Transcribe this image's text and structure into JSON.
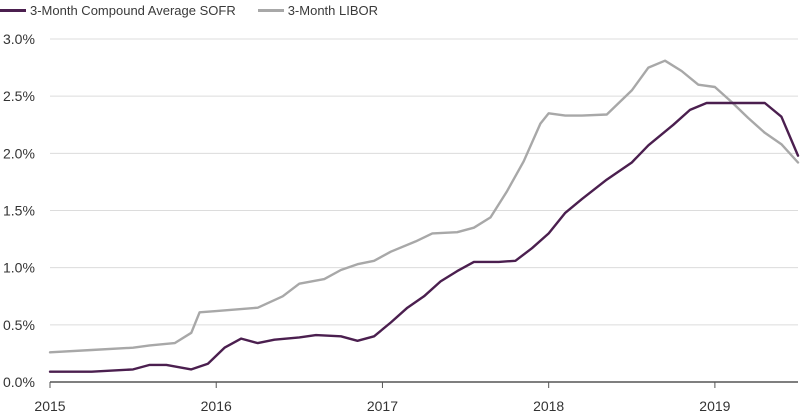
{
  "chart_data": {
    "type": "line",
    "title": "",
    "xlabel": "",
    "ylabel": "",
    "x_ticks": [
      "2015",
      "2016",
      "2017",
      "2018",
      "2019"
    ],
    "y_ticks": [
      "0.0%",
      "0.5%",
      "1.0%",
      "1.5%",
      "2.0%",
      "2.5%",
      "3.0%"
    ],
    "xlim": [
      2015.0,
      2019.5
    ],
    "ylim": [
      0,
      3.0
    ],
    "grid": "horizontal",
    "legend_position": "top-left",
    "series": [
      {
        "name": "3-Month Compound Average SOFR",
        "color": "#4b1f4f",
        "x": [
          2015.0,
          2015.25,
          2015.5,
          2015.6,
          2015.7,
          2015.85,
          2015.95,
          2016.05,
          2016.15,
          2016.25,
          2016.35,
          2016.5,
          2016.6,
          2016.75,
          2016.85,
          2016.95,
          2017.05,
          2017.15,
          2017.25,
          2017.35,
          2017.45,
          2017.55,
          2017.7,
          2017.8,
          2017.9,
          2018.0,
          2018.1,
          2018.2,
          2018.35,
          2018.5,
          2018.6,
          2018.75,
          2018.85,
          2018.95,
          2019.05,
          2019.2,
          2019.3,
          2019.4,
          2019.5
        ],
        "values": [
          0.09,
          0.09,
          0.11,
          0.15,
          0.15,
          0.11,
          0.16,
          0.3,
          0.38,
          0.34,
          0.37,
          0.39,
          0.41,
          0.4,
          0.36,
          0.4,
          0.52,
          0.65,
          0.75,
          0.88,
          0.97,
          1.05,
          1.05,
          1.06,
          1.17,
          1.3,
          1.48,
          1.6,
          1.77,
          1.92,
          2.07,
          2.25,
          2.38,
          2.44,
          2.44,
          2.44,
          2.44,
          2.32,
          1.98
        ]
      },
      {
        "name": "3-Month LIBOR",
        "color": "#a8a8a8",
        "x": [
          2015.0,
          2015.25,
          2015.5,
          2015.6,
          2015.75,
          2015.85,
          2015.9,
          2016.0,
          2016.25,
          2016.4,
          2016.5,
          2016.65,
          2016.75,
          2016.85,
          2016.95,
          2017.05,
          2017.2,
          2017.3,
          2017.45,
          2017.55,
          2017.65,
          2017.75,
          2017.85,
          2017.95,
          2018.0,
          2018.1,
          2018.2,
          2018.35,
          2018.5,
          2018.6,
          2018.7,
          2018.8,
          2018.9,
          2019.0,
          2019.1,
          2019.2,
          2019.3,
          2019.4,
          2019.5
        ],
        "values": [
          0.26,
          0.28,
          0.3,
          0.32,
          0.34,
          0.43,
          0.61,
          0.62,
          0.65,
          0.75,
          0.86,
          0.9,
          0.98,
          1.03,
          1.06,
          1.14,
          1.23,
          1.3,
          1.31,
          1.35,
          1.44,
          1.67,
          1.93,
          2.26,
          2.35,
          2.33,
          2.33,
          2.34,
          2.55,
          2.75,
          2.81,
          2.72,
          2.6,
          2.58,
          2.45,
          2.31,
          2.18,
          2.08,
          1.92
        ]
      }
    ]
  }
}
